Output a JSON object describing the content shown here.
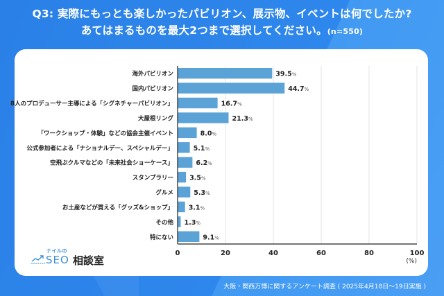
{
  "header": {
    "title_line1": "Q3: 実際にもっとも楽しかったパビリオン、展示物、イベントは何でしたか?",
    "title_line2": "あてはまるものを最大2つまで選択してください。",
    "sample_size": "(n=550)"
  },
  "logo": {
    "small_text": "ナイルの",
    "seo_text": "SEO",
    "jp_text": "相談室",
    "icon": "trend-line-icon"
  },
  "footer": {
    "source": "大阪・関西万博に関するアンケート調査 ( 2025年4月18日〜19日実施 )"
  },
  "colors": {
    "background": "#2e86ea",
    "bar": "#5ba3d6",
    "card": "#ffffff",
    "gridline": "#e3e3e3",
    "text": "#222222"
  },
  "chart_data": {
    "type": "bar",
    "orientation": "horizontal",
    "title": "Q3: 実際にもっとも楽しかったパビリオン、展示物、イベントは何でしたか? あてはまるものを最大2つまで選択してください。(n=550)",
    "categories": [
      "海外パビリオン",
      "国内パビリオン",
      "8人のプロデューサー主導による「シグネチャーパビリオン」",
      "大屋根リング",
      "「ワークショップ・体験」などの協会主催イベント",
      "公式参加者による「ナショナルデー、スペシャルデー」",
      "空飛ぶクルマなどの「未来社会ショーケース」",
      "スタンプラリー",
      "グルメ",
      "お土産などが買える「グッズ&ショップ」",
      "その他",
      "特にない"
    ],
    "values": [
      39.5,
      44.7,
      16.7,
      21.3,
      8.0,
      5.1,
      6.2,
      3.5,
      5.3,
      3.1,
      1.3,
      9.1
    ],
    "value_labels": [
      "39.5",
      "44.7",
      "16.7",
      "21.3",
      "8.0",
      "5.1",
      "6.2",
      "3.5",
      "5.3",
      "3.1",
      "1.3",
      "9.1"
    ],
    "value_suffix": "%",
    "xlabel": "(%)",
    "ylabel": "",
    "xlim": [
      0,
      100
    ],
    "xticks": [
      0,
      20,
      40,
      60,
      80,
      100
    ],
    "xtick_labels": [
      "0",
      "20",
      "40",
      "60",
      "80",
      "100"
    ],
    "grid": true,
    "legend": "none"
  }
}
